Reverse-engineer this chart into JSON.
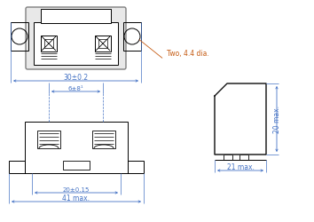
{
  "bg_color": "#ffffff",
  "line_color": "#000000",
  "dim_color": "#4472c4",
  "orange_color": "#c55a11",
  "gray_color": "#7f7f7f",
  "figsize": [
    3.54,
    2.51
  ],
  "dpi": 100,
  "annotations": {
    "dim_30": "30±0.2",
    "dim_two_dia": "Two, 4.4 dia.",
    "dim_6": "6±8¹",
    "dim_20_015": "20±0.15",
    "dim_41": "41 max.",
    "dim_20_max": "20 max.",
    "dim_21_max": "21 max."
  }
}
